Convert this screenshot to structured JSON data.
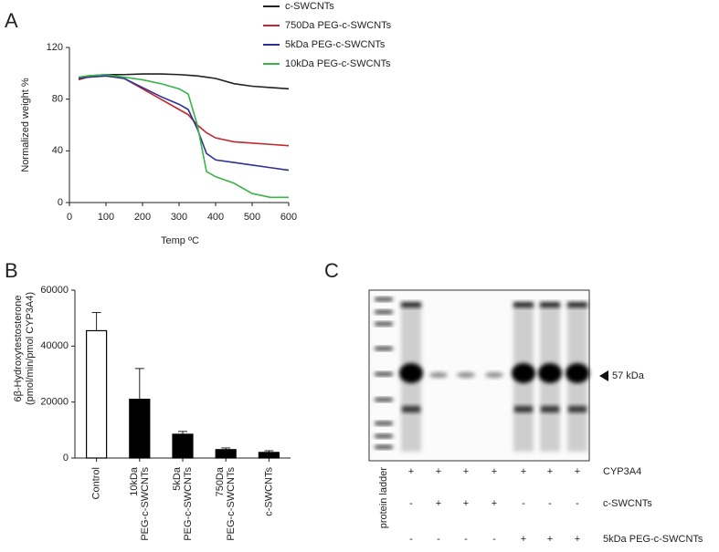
{
  "chart_data": [
    {
      "type": "line",
      "label": "A",
      "xlabel": "Temp ºC",
      "ylabel": "Normalized weight %",
      "x": [
        25,
        50,
        100,
        150,
        200,
        250,
        300,
        325,
        350,
        375,
        400,
        450,
        500,
        550,
        600
      ],
      "series": [
        {
          "name": "c-SWCNTs",
          "color": "#222222",
          "values": [
            96,
            98,
            99,
            99,
            99.5,
            99.5,
            99,
            98.5,
            98,
            97,
            96,
            92,
            90,
            89,
            88
          ]
        },
        {
          "name": "750Da PEG-c-SWCNTs",
          "color": "#c1272d",
          "values": [
            95,
            97,
            98,
            96,
            88,
            80,
            72,
            68,
            60,
            54,
            50,
            47,
            46,
            45,
            44
          ]
        },
        {
          "name": "5kDa PEG-c-SWCNTs",
          "color": "#2e3192",
          "values": [
            96,
            97,
            98,
            96,
            89,
            82,
            76,
            72,
            57,
            38,
            33,
            31,
            29,
            27,
            25
          ]
        },
        {
          "name": "10kDa PEG-c-SWCNTs",
          "color": "#39b54a",
          "values": [
            97,
            98,
            99,
            97,
            95,
            92,
            88,
            84,
            60,
            24,
            20,
            15,
            7,
            4,
            4
          ]
        }
      ],
      "xlim": [
        0,
        600
      ],
      "xticks": [
        0,
        100,
        200,
        300,
        400,
        500,
        600
      ],
      "ylim": [
        0,
        120
      ],
      "yticks": [
        0,
        40,
        80,
        120
      ]
    },
    {
      "type": "bar",
      "label": "B",
      "ylabel": [
        "6β-Hydroxytestosterone",
        "(pmol/min/pmol CYP3A4)"
      ],
      "categories": [
        "Control",
        "10kDa PEG-c-SWCNTs",
        "5kDa PEG-c-SWCNTs",
        "750Da PEG-c-SWCNTs",
        "c-SWCNTs"
      ],
      "values": [
        45500,
        21000,
        8500,
        3000,
        2000
      ],
      "errors": [
        6500,
        11000,
        1000,
        600,
        600
      ],
      "colors": [
        "#ffffff",
        "#000000",
        "#000000",
        "#000000",
        "#000000"
      ],
      "ylim": [
        0,
        60000
      ],
      "yticks": [
        0,
        20000,
        40000,
        60000
      ]
    }
  ],
  "blot": {
    "label": "C",
    "marker": "57 kDa",
    "ladder_label": "protein ladder",
    "rows": [
      {
        "name": "CYP3A4",
        "signs": [
          "+",
          "+",
          "+",
          "+",
          "+",
          "+",
          "+"
        ]
      },
      {
        "name": "c-SWCNTs",
        "signs": [
          "-",
          "+",
          "+",
          "+",
          "-",
          "-",
          "-"
        ]
      },
      {
        "name": "5kDa PEG-c-SWCNTs",
        "signs": [
          "-",
          "-",
          "-",
          "-",
          "+",
          "+",
          "+"
        ]
      }
    ]
  }
}
